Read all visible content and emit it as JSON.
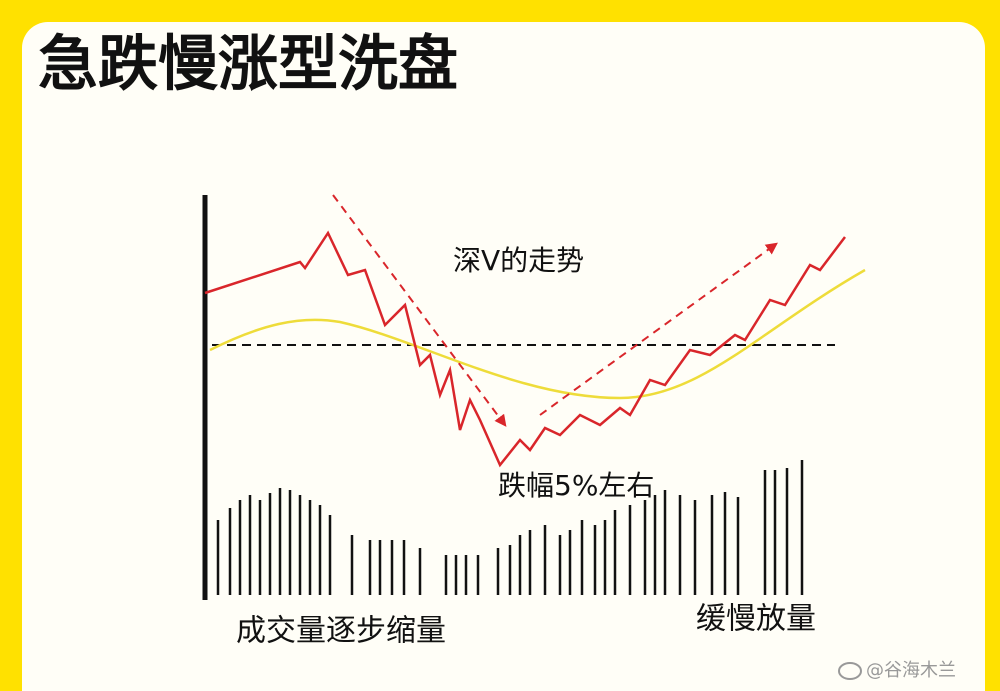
{
  "header": {
    "title": "急跌慢涨型洗盘"
  },
  "annotations": {
    "trend": "深V的走势",
    "drop": "跌幅5%左右",
    "volume_shrink": "成交量逐步缩量",
    "volume_grow": "缓慢放量"
  },
  "watermark": "@谷海木兰"
}
